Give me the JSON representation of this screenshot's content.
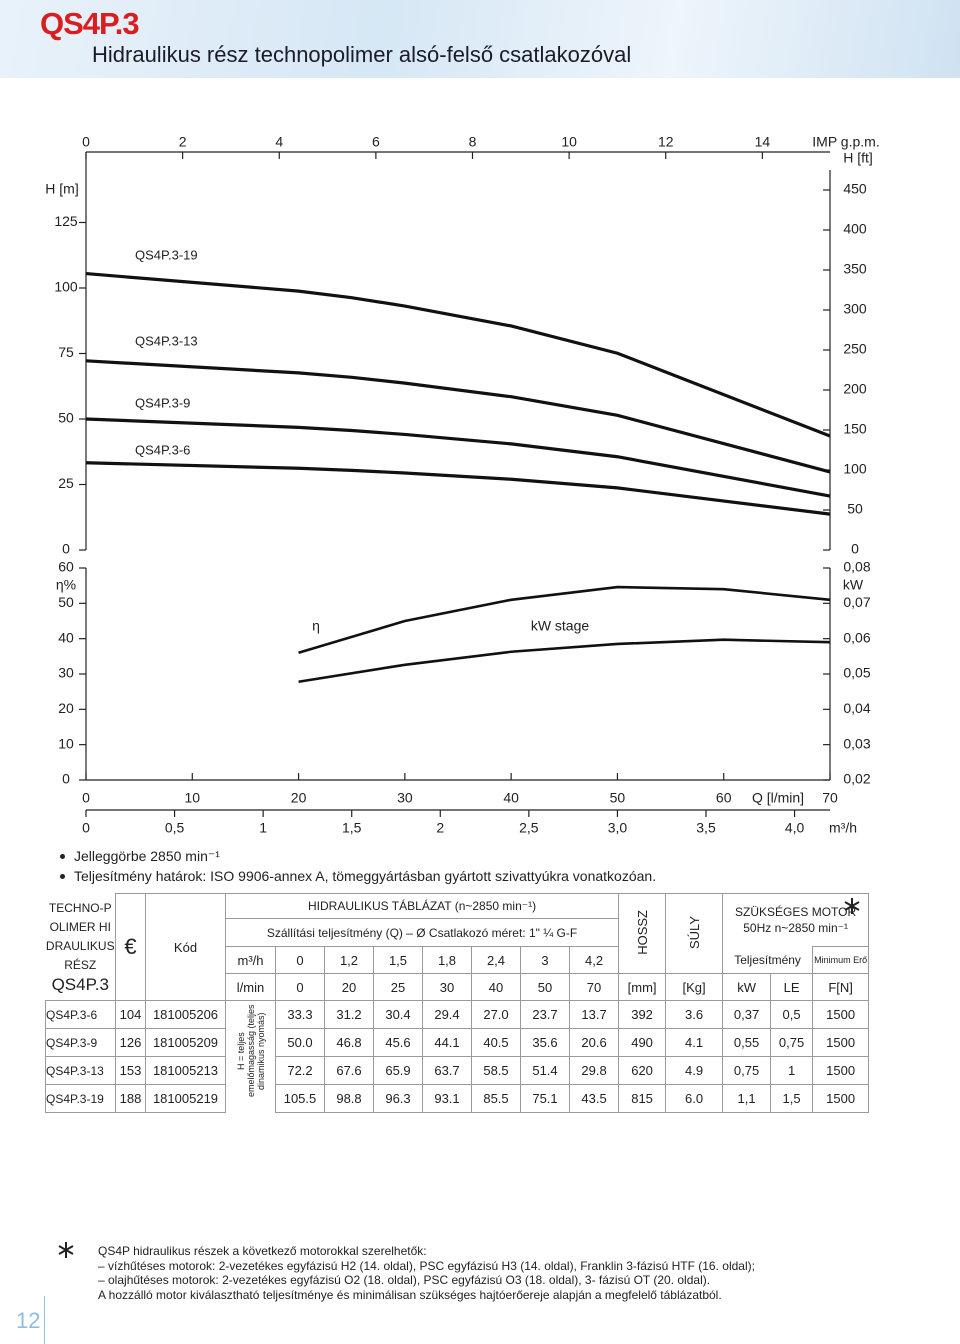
{
  "header": {
    "title": "QS4P.3",
    "subtitle": "Hidraulikus rész technopolimer alsó-felső csatlakozóval"
  },
  "chart_data": {
    "type": "line",
    "x_label": "Q [l/min]",
    "xlim": [
      0,
      70
    ],
    "xticks": [
      0,
      10,
      20,
      30,
      40,
      50,
      60,
      70
    ],
    "gpm_label": "IMP g.p.m.",
    "gpm_lim": [
      0,
      15.4
    ],
    "gpm_ticks": [
      0,
      2,
      4,
      6,
      8,
      10,
      12,
      14
    ],
    "m3h_label": "m³/h",
    "m3h_lim": [
      0,
      4.2
    ],
    "m3h_ticks": [
      0,
      {
        "value": 0.5,
        "label": "0,5"
      },
      1,
      {
        "value": 1.5,
        "label": "1,5"
      },
      2,
      {
        "value": 2.5,
        "label": "2,5"
      },
      {
        "value": 3,
        "label": "3,0"
      },
      {
        "value": 3.5,
        "label": "3,5"
      },
      {
        "value": 4,
        "label": "4,0"
      }
    ],
    "y_label": "H [m]",
    "ylim": [
      0,
      137.4
    ],
    "yticks": [
      0,
      25,
      50,
      75,
      100,
      125
    ],
    "y2_label": "H [ft]",
    "y2lim": [
      0,
      450
    ],
    "y2ticks": [
      0,
      50,
      100,
      150,
      200,
      250,
      300,
      350,
      400,
      450
    ],
    "lower": {
      "eta_label": "η%",
      "eta_lim": [
        0,
        60
      ],
      "eta_ticks": [
        0,
        10,
        20,
        30,
        40,
        50,
        60
      ],
      "kw_label": "kW",
      "kw_lim": [
        0.02,
        0.08
      ],
      "kw_ticks": [
        {
          "value": 0.02,
          "label": "0,02"
        },
        {
          "value": 0.03,
          "label": "0,03"
        },
        {
          "value": 0.04,
          "label": "0,04"
        },
        {
          "value": 0.05,
          "label": "0,05"
        },
        {
          "value": 0.06,
          "label": "0,06"
        },
        {
          "value": 0.07,
          "label": "0,07"
        },
        {
          "value": 0.08,
          "label": "0,08"
        }
      ],
      "x": [
        20,
        30,
        40,
        50,
        60,
        70
      ],
      "series": [
        {
          "name": "η",
          "color": "#111111",
          "values": [
            36,
            45,
            51,
            54.6,
            54,
            51
          ]
        },
        {
          "name": "kW stage",
          "color": "#111111",
          "axis": "y2",
          "values": [
            0.0478,
            0.0526,
            0.0563,
            0.0585,
            0.0597,
            0.059
          ]
        }
      ]
    }
  },
  "notes": [
    "Jelleggörbe 2850 min⁻¹",
    "Teljesítmény határok: ISO 9906-annex A, tömeggyártásban gyártott szivattyúkra vonatkozóan."
  ],
  "table": {
    "brand": "TECHNO-POLIMER HIDRAULIKUS RÉSZ",
    "model": "QS4P.3",
    "currency": "€",
    "code_header": "Kód",
    "title": "HIDRAULIKUS TÁBLÁZAT (n~2850 min⁻¹)",
    "flow_header": "Szállítási teljesítmény (Q) – Ø Csatlakozó méret: 1\" ¼ G-F",
    "m3h_unit": "m³/h",
    "flow_m3h": [
      "0",
      "1,2",
      "1,5",
      "1,8",
      "2,4",
      "3",
      "4,2"
    ],
    "lmin_unit": "l/min",
    "flow_lmin": [
      0,
      20,
      25,
      30,
      40,
      50,
      70
    ],
    "length_header": "HOSSZ",
    "length_unit": "[mm]",
    "weight_header": "SÚLY",
    "weight_unit": "[Kg]",
    "motor_header": "SZÜKSÉGES MOTOR",
    "motor_sub": "50Hz n~2850 min⁻¹",
    "power_header": "Teljesítmény",
    "force_header": "Minimum Erő",
    "kw_unit": "kW",
    "le_unit": "LE",
    "force_unit": "F[N]",
    "head_note": "H = teljes emelőmagasság (teljes dinamikus nyomás)",
    "rows": [
      {
        "model": "QS4P.3-6",
        "price": "104",
        "code": "181005206",
        "heads": [
          "33.3",
          "31.2",
          "30.4",
          "29.4",
          "27.0",
          "23.7",
          "13.7"
        ],
        "length": 392,
        "weight": "3.6",
        "kw": "0,37",
        "le": "0,5",
        "force": 1500
      },
      {
        "model": "QS4P.3-9",
        "price": "126",
        "code": "181005209",
        "heads": [
          "50.0",
          "46.8",
          "45.6",
          "44.1",
          "40.5",
          "35.6",
          "20.6"
        ],
        "length": 490,
        "weight": "4.1",
        "kw": "0,55",
        "le": "0,75",
        "force": 1500
      },
      {
        "model": "QS4P.3-13",
        "price": "153",
        "code": "181005213",
        "heads": [
          "72.2",
          "67.6",
          "65.9",
          "63.7",
          "58.5",
          "51.4",
          "29.8"
        ],
        "length": 620,
        "weight": "4.9",
        "kw": "0,75",
        "le": "1",
        "force": 1500
      },
      {
        "model": "QS4P.3-19",
        "price": "188",
        "code": "181005219",
        "heads": [
          "105.5",
          "98.8",
          "96.3",
          "93.1",
          "85.5",
          "75.1",
          "43.5"
        ],
        "length": 815,
        "weight": "6.0",
        "kw": "1,1",
        "le": "1,5",
        "force": 1500
      }
    ]
  },
  "footnote": [
    "QS4P hidraulikus részek a következő motorokkal szerelhetők:",
    "– vízhűtéses motorok: 2-vezetékes egyfázisú H2 (14. oldal), PSC egyfázisú H3 (14. oldal), Franklin 3-fázisú HTF (16. oldal);",
    "– olajhűtéses motorok: 2-vezetékes egyfázisú O2 (18. oldal), PSC egyfázisú O3 (18. oldal), 3- fázisú OT (20. oldal).",
    "A hozzálló motor kiválasztható teljesítménye és minimálisan szükséges hajtóerőereje alapján a megfelelő táblázatból."
  ],
  "page_number": "12"
}
